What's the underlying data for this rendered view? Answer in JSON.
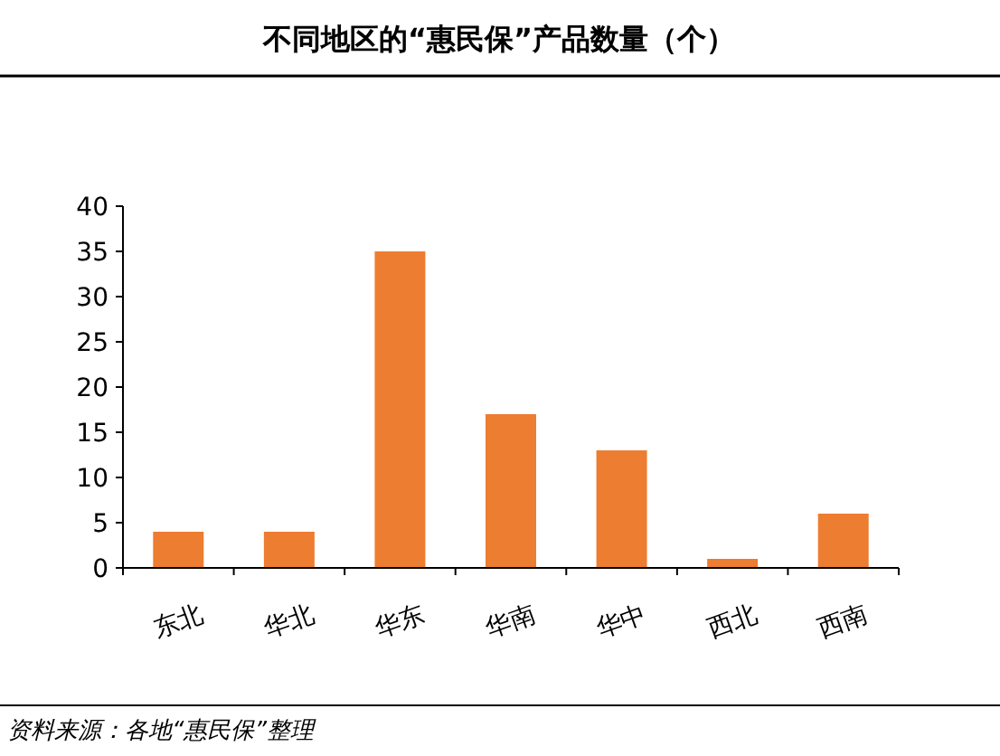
{
  "chart_data": {
    "type": "bar",
    "title": "不同地区的“惠民保”产品数量（个）",
    "categories": [
      "东北",
      "华北",
      "华东",
      "华南",
      "华中",
      "西北",
      "西南"
    ],
    "values": [
      4,
      4,
      35,
      17,
      13,
      1,
      6
    ],
    "color": "#ed7d31",
    "ylim": [
      0,
      40
    ],
    "yticks": [
      0,
      5,
      10,
      15,
      20,
      25,
      30,
      35,
      40
    ],
    "grid": false,
    "annotations": [
      "资料来源：各地“惠民保”整理"
    ]
  }
}
